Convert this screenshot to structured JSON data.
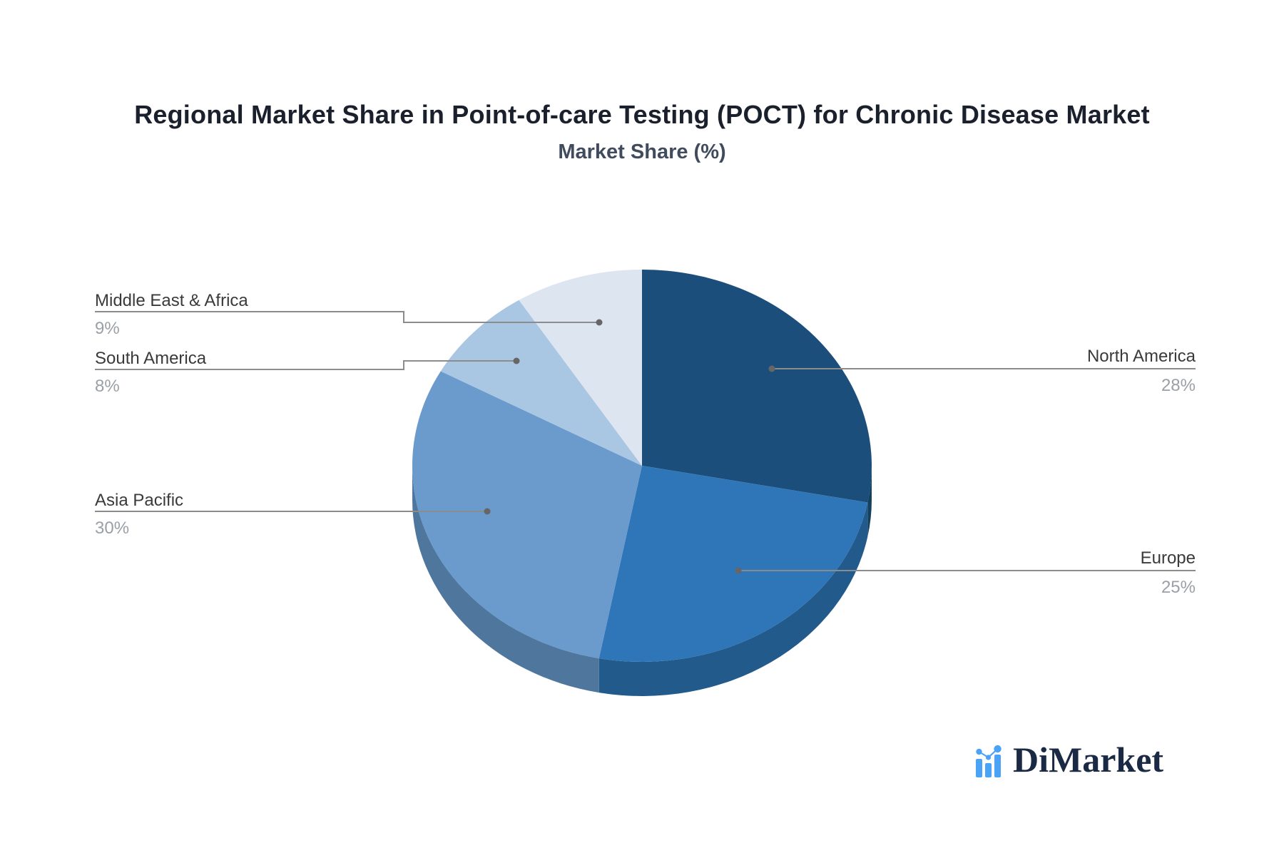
{
  "header": {
    "title": "Regional Market Share in Point-of-care Testing (POCT) for Chronic Disease Market",
    "subtitle": "Market Share (%)"
  },
  "chart_data": {
    "type": "pie",
    "title": "Regional Market Share in Point-of-care Testing (POCT) for Chronic Disease Market",
    "subtitle": "Market Share (%)",
    "unit": "%",
    "style": "3d-extruded-pie",
    "start_angle": "12-oclock",
    "direction": "clockwise",
    "legend_position": "none",
    "slices": [
      {
        "label": "North America",
        "value": 28,
        "value_label": "28%",
        "color": "#1c4e7c",
        "side_color": "#16405f",
        "label_side": "right"
      },
      {
        "label": "Europe",
        "value": 25,
        "value_label": "25%",
        "color": "#2e76b8",
        "side_color": "#225a8c",
        "label_side": "right"
      },
      {
        "label": "Asia Pacific",
        "value": 30,
        "value_label": "30%",
        "color": "#6b9acd",
        "side_color": "#4f779e",
        "label_side": "left"
      },
      {
        "label": "South America",
        "value": 8,
        "value_label": "8%",
        "color": "#a9c6e2",
        "side_color": "#7e9bbe",
        "label_side": "left"
      },
      {
        "label": "Middle East & Africa",
        "value": 9,
        "value_label": "9%",
        "color": "#dde5f0",
        "side_color": "#aebacc",
        "label_side": "left"
      }
    ]
  },
  "colors": {
    "background": "#ffffff",
    "title": "#1a202c",
    "subtitle": "#414b5e",
    "label_text": "#3a3a3a",
    "value_text": "#9aa0a6",
    "leader_line": "#8c8c8c",
    "leader_dot": "#666666",
    "logo_accent": "#4ba3f7",
    "logo_text_color": "#1b2a44"
  },
  "branding": {
    "logo_text": "DiMarket",
    "logo_icon": "bar-line-chart-icon"
  }
}
